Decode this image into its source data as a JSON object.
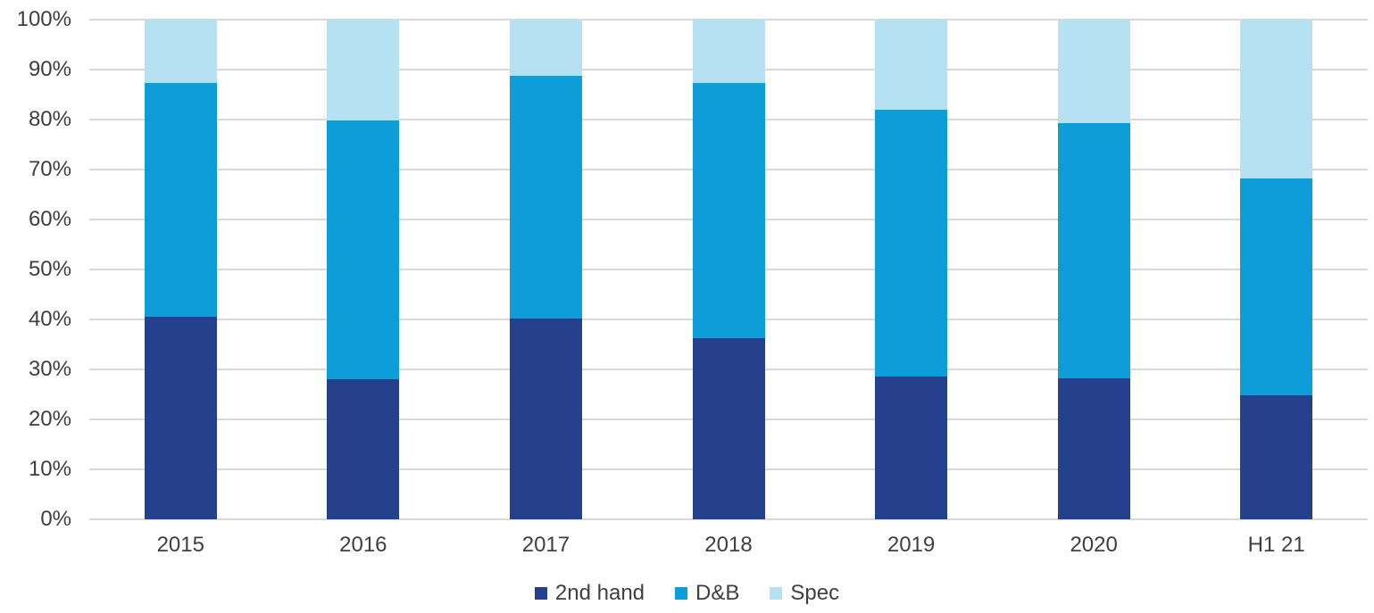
{
  "chart_data": {
    "type": "bar",
    "variant": "stacked-100-percent",
    "title": "",
    "xlabel": "",
    "ylabel": "",
    "categories": [
      "2015",
      "2016",
      "2017",
      "2018",
      "2019",
      "2020",
      "H1 21"
    ],
    "series": [
      {
        "name": "2nd hand",
        "color": "#25408d",
        "values": [
          40.6,
          28.1,
          40.2,
          36.3,
          28.6,
          28.3,
          24.9
        ]
      },
      {
        "name": "D&B",
        "color": "#0d9dd9",
        "values": [
          46.7,
          51.7,
          48.6,
          51.1,
          53.4,
          51.0,
          43.3
        ]
      },
      {
        "name": "Spec",
        "color": "#b5e1f3",
        "values": [
          12.7,
          20.2,
          11.2,
          12.6,
          18.0,
          20.7,
          31.8
        ]
      }
    ],
    "y_axis": {
      "min": 0,
      "max": 100,
      "tick_step": 10,
      "tick_labels": [
        "0%",
        "10%",
        "20%",
        "30%",
        "40%",
        "50%",
        "60%",
        "70%",
        "80%",
        "90%",
        "100%"
      ]
    },
    "grid": true,
    "gridline_color": "#d9d9d9",
    "text_color": "#3f3f3f",
    "background_color": "#ffffff",
    "legend_position": "bottom"
  }
}
